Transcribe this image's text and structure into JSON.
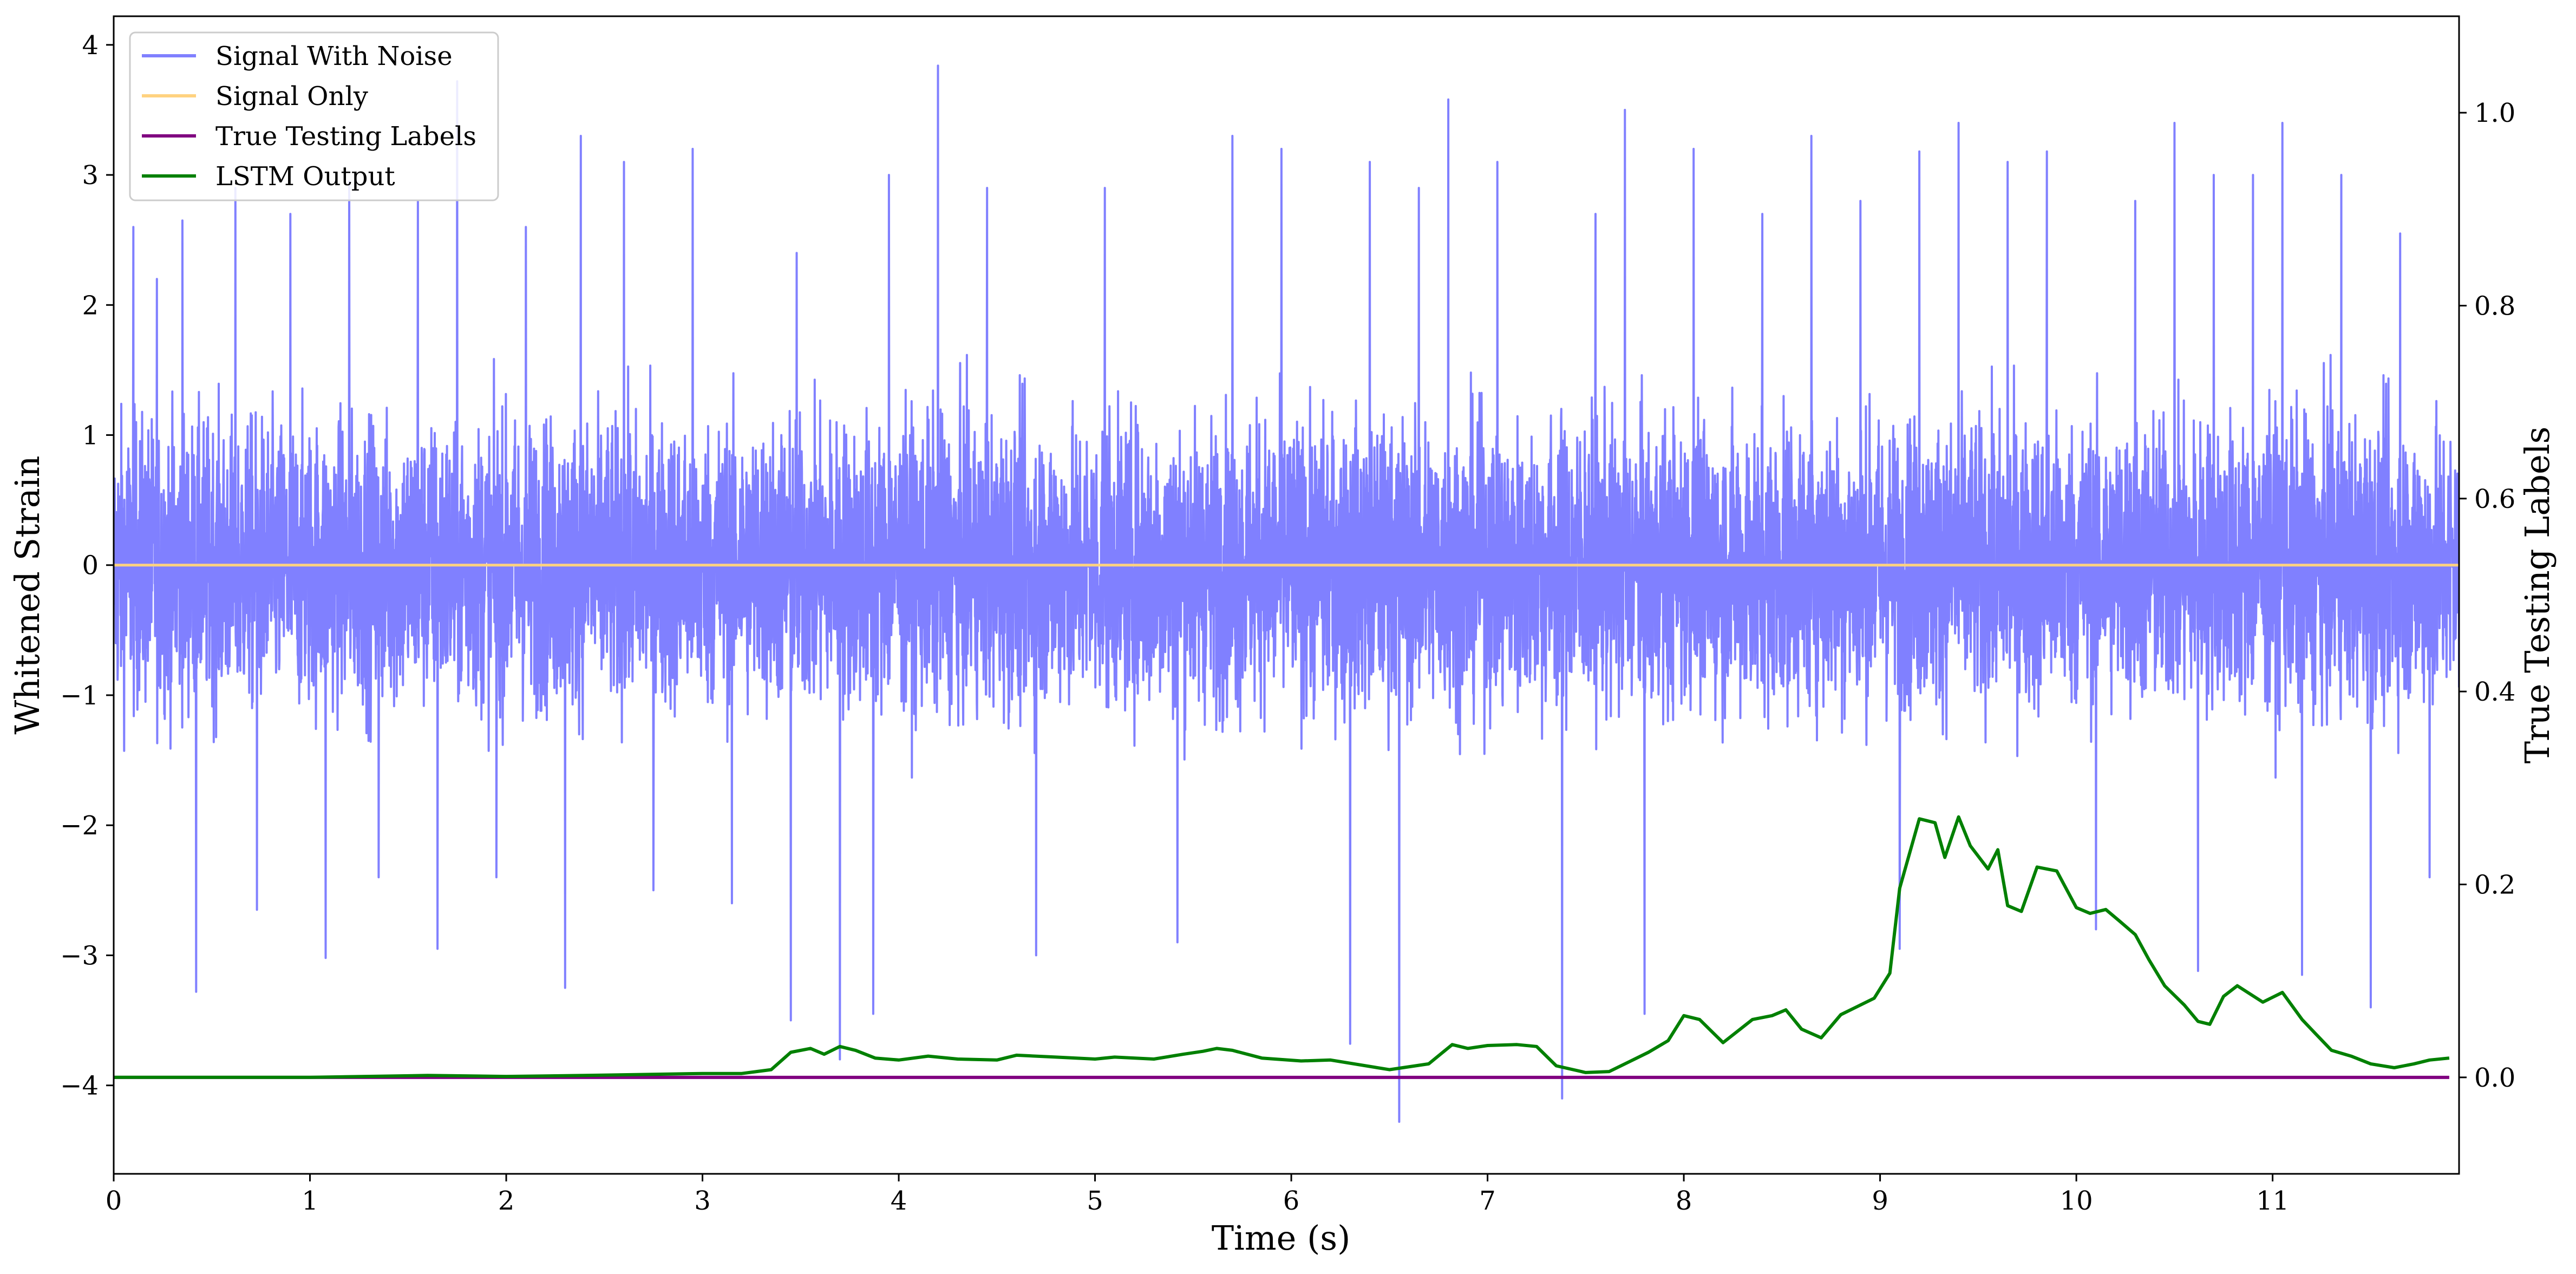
{
  "chart_data": {
    "type": "line",
    "xlabel": "Time (s)",
    "ylabel": "Whitened Strain",
    "y2label": "True Testing Labels",
    "xlim": [
      0,
      11.95
    ],
    "ylim": [
      -4.68,
      4.22
    ],
    "y2lim": [
      -0.1,
      1.1
    ],
    "xticks": [
      0,
      1,
      2,
      3,
      4,
      5,
      6,
      7,
      8,
      9,
      10,
      11
    ],
    "yticks": [
      -4,
      -3,
      -2,
      -1,
      0,
      1,
      2,
      3,
      4
    ],
    "y2ticks": [
      0.0,
      0.2,
      0.4,
      0.6,
      0.8,
      1.0
    ],
    "y2ticklabels": [
      "0.0",
      "0.2",
      "0.4",
      "0.6",
      "0.8",
      "1.0"
    ],
    "legend_position": "top-left",
    "grid": false,
    "series": [
      {
        "name": "Signal With Noise",
        "axis": "left",
        "color": "#8080ff",
        "description": "dense noise, approx. range -4.3 to 3.8",
        "noise_bounds": {
          "typical_low": -1.9,
          "typical_high": 2.0,
          "min": -4.28,
          "max": 3.84
        },
        "spikes": [
          {
            "x": 0.1,
            "y": 2.6
          },
          {
            "x": 0.22,
            "y": 2.2
          },
          {
            "x": 0.42,
            "y": -3.28
          },
          {
            "x": 0.35,
            "y": 2.65
          },
          {
            "x": 0.62,
            "y": 2.9
          },
          {
            "x": 0.73,
            "y": -2.65
          },
          {
            "x": 0.9,
            "y": 2.7
          },
          {
            "x": 1.08,
            "y": -3.02
          },
          {
            "x": 1.2,
            "y": 2.95
          },
          {
            "x": 1.35,
            "y": -2.4
          },
          {
            "x": 1.55,
            "y": 2.8
          },
          {
            "x": 1.65,
            "y": -2.95
          },
          {
            "x": 1.75,
            "y": 3.72
          },
          {
            "x": 1.95,
            "y": -2.4
          },
          {
            "x": 2.1,
            "y": 2.6
          },
          {
            "x": 2.3,
            "y": -3.25
          },
          {
            "x": 2.38,
            "y": 3.3
          },
          {
            "x": 2.6,
            "y": 3.1
          },
          {
            "x": 2.75,
            "y": -2.5
          },
          {
            "x": 2.95,
            "y": 3.2
          },
          {
            "x": 3.15,
            "y": -2.6
          },
          {
            "x": 3.45,
            "y": -3.5
          },
          {
            "x": 3.48,
            "y": 2.4
          },
          {
            "x": 3.7,
            "y": -3.8
          },
          {
            "x": 3.87,
            "y": -3.45
          },
          {
            "x": 3.95,
            "y": 3.0
          },
          {
            "x": 4.2,
            "y": 3.84
          },
          {
            "x": 4.45,
            "y": 2.9
          },
          {
            "x": 4.7,
            "y": -3.0
          },
          {
            "x": 5.05,
            "y": 2.9
          },
          {
            "x": 5.42,
            "y": -2.9
          },
          {
            "x": 5.7,
            "y": 3.3
          },
          {
            "x": 5.95,
            "y": 3.2
          },
          {
            "x": 6.3,
            "y": -3.68
          },
          {
            "x": 6.4,
            "y": 3.1
          },
          {
            "x": 6.55,
            "y": -4.28
          },
          {
            "x": 6.65,
            "y": 2.9
          },
          {
            "x": 6.8,
            "y": 3.58
          },
          {
            "x": 7.05,
            "y": 3.1
          },
          {
            "x": 7.38,
            "y": -4.1
          },
          {
            "x": 7.55,
            "y": 2.7
          },
          {
            "x": 7.7,
            "y": 3.5
          },
          {
            "x": 7.8,
            "y": -3.45
          },
          {
            "x": 8.05,
            "y": 3.2
          },
          {
            "x": 8.4,
            "y": 2.7
          },
          {
            "x": 8.65,
            "y": 3.3
          },
          {
            "x": 8.9,
            "y": 2.8
          },
          {
            "x": 9.1,
            "y": -2.95
          },
          {
            "x": 9.2,
            "y": 3.18
          },
          {
            "x": 9.4,
            "y": 3.4
          },
          {
            "x": 9.65,
            "y": 3.1
          },
          {
            "x": 9.85,
            "y": 3.18
          },
          {
            "x": 10.1,
            "y": -2.8
          },
          {
            "x": 10.3,
            "y": 2.8
          },
          {
            "x": 10.5,
            "y": 3.4
          },
          {
            "x": 10.62,
            "y": -3.12
          },
          {
            "x": 10.7,
            "y": 3.0
          },
          {
            "x": 10.9,
            "y": 3.0
          },
          {
            "x": 11.05,
            "y": 3.4
          },
          {
            "x": 11.15,
            "y": -3.15
          },
          {
            "x": 11.35,
            "y": 3.0
          },
          {
            "x": 11.5,
            "y": -3.4
          },
          {
            "x": 11.65,
            "y": 2.55
          },
          {
            "x": 11.8,
            "y": -2.4
          }
        ]
      },
      {
        "name": "Signal Only",
        "axis": "left",
        "color": "#ffd280",
        "x": [
          0,
          11.95
        ],
        "y": [
          0,
          0
        ]
      },
      {
        "name": "True Testing Labels",
        "axis": "right",
        "color": "#800080",
        "x": [
          0,
          11.9
        ],
        "y": [
          0.0,
          0.0
        ]
      },
      {
        "name": "LSTM Output",
        "axis": "right",
        "color": "#008000",
        "x": [
          0,
          1.0,
          1.6,
          2.0,
          2.4,
          2.7,
          3.0,
          3.2,
          3.35,
          3.45,
          3.55,
          3.62,
          3.7,
          3.78,
          3.88,
          4.0,
          4.15,
          4.3,
          4.5,
          4.6,
          4.8,
          5.0,
          5.1,
          5.3,
          5.45,
          5.55,
          5.62,
          5.7,
          5.85,
          6.05,
          6.2,
          6.5,
          6.7,
          6.82,
          6.9,
          7.0,
          7.15,
          7.25,
          7.35,
          7.5,
          7.62,
          7.72,
          7.82,
          7.92,
          8.0,
          8.08,
          8.2,
          8.35,
          8.45,
          8.52,
          8.6,
          8.7,
          8.8,
          8.9,
          8.97,
          9.05,
          9.1,
          9.2,
          9.28,
          9.33,
          9.4,
          9.46,
          9.55,
          9.6,
          9.65,
          9.72,
          9.8,
          9.9,
          10.0,
          10.07,
          10.15,
          10.22,
          10.3,
          10.37,
          10.45,
          10.55,
          10.62,
          10.68,
          10.75,
          10.82,
          10.95,
          11.05,
          11.15,
          11.22,
          11.3,
          11.4,
          11.5,
          11.62,
          11.72,
          11.8,
          11.9
        ],
        "y": [
          0.0,
          0.0,
          0.002,
          0.001,
          0.002,
          0.003,
          0.004,
          0.004,
          0.008,
          0.026,
          0.03,
          0.024,
          0.032,
          0.028,
          0.02,
          0.018,
          0.022,
          0.019,
          0.018,
          0.023,
          0.021,
          0.019,
          0.021,
          0.019,
          0.024,
          0.027,
          0.03,
          0.028,
          0.02,
          0.017,
          0.018,
          0.008,
          0.014,
          0.034,
          0.03,
          0.033,
          0.034,
          0.032,
          0.012,
          0.005,
          0.006,
          0.016,
          0.026,
          0.038,
          0.064,
          0.06,
          0.036,
          0.06,
          0.064,
          0.07,
          0.05,
          0.041,
          0.065,
          0.075,
          0.082,
          0.108,
          0.196,
          0.268,
          0.264,
          0.228,
          0.27,
          0.24,
          0.216,
          0.236,
          0.178,
          0.172,
          0.218,
          0.214,
          0.176,
          0.17,
          0.174,
          0.162,
          0.148,
          0.122,
          0.095,
          0.075,
          0.058,
          0.055,
          0.084,
          0.095,
          0.078,
          0.088,
          0.06,
          0.045,
          0.028,
          0.022,
          0.014,
          0.01,
          0.014,
          0.018,
          0.02
        ]
      }
    ]
  }
}
